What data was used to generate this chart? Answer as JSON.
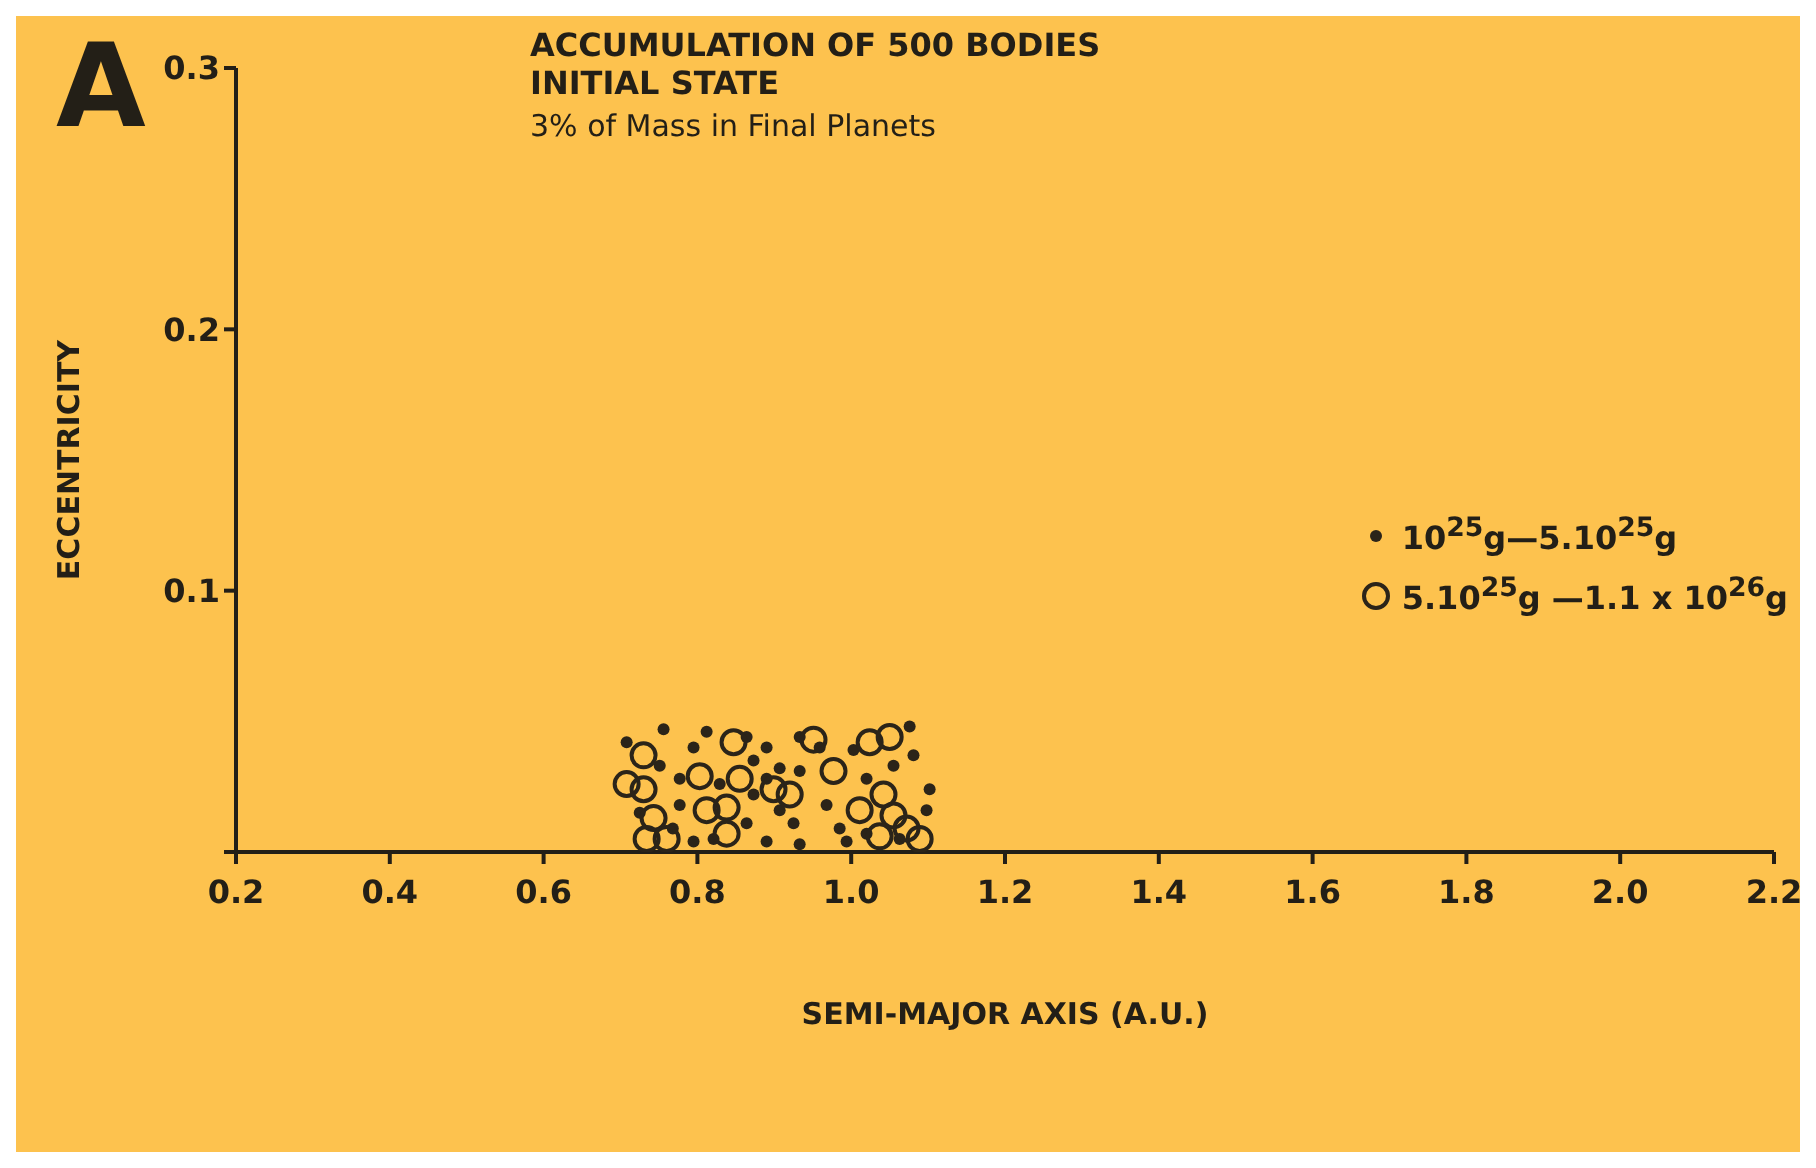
{
  "chart_data": {
    "type": "scatter",
    "title": "ACCUMULATION OF 500 BODIES",
    "subtitle": "INITIAL STATE",
    "annotations": [
      "A",
      "3% of Mass in Final Planets"
    ],
    "xlabel": "SEMI-MAJOR AXIS (A.U.)",
    "ylabel": "ECCENTRICITY",
    "xlim": [
      0.2,
      2.2
    ],
    "xticks": [
      {
        "value": 0.2,
        "label": "0.2"
      },
      {
        "value": 0.4,
        "label": "0.4"
      },
      {
        "value": 0.6,
        "label": "0.6"
      },
      {
        "value": 0.8,
        "label": "0.8"
      },
      {
        "value": 1.0,
        "label": "1.0"
      },
      {
        "value": 1.2,
        "label": "1.2"
      },
      {
        "value": 1.4,
        "label": "1.4"
      },
      {
        "value": 1.6,
        "label": "1.6"
      },
      {
        "value": 1.8,
        "label": "1.8"
      },
      {
        "value": 2.0,
        "label": "2.0"
      },
      {
        "value": 2.2,
        "label": "2.2"
      }
    ],
    "ylim": [
      0,
      0.3
    ],
    "yticks": [
      {
        "value": 0,
        "label": null
      },
      0.1,
      0.2,
      0.3
    ],
    "grid": false,
    "legend": "right",
    "marker": "circle",
    "series": [
      {
        "name": "10$^{25}$g—5.10$^{25}$g",
        "color": "#2b2419",
        "x": [
          0.708,
          0.756,
          0.795,
          0.812,
          0.873,
          0.89,
          0.933,
          0.959,
          1.003,
          1.076,
          1.081,
          1.102,
          1.098,
          0.933,
          0.907,
          0.873,
          0.864,
          0.925,
          0.933,
          0.985,
          0.994,
          0.968,
          0.777,
          0.768,
          0.725,
          0.795,
          0.821,
          0.89,
          1.02,
          1.063,
          0.907,
          0.829,
          0.777,
          0.751,
          1.02,
          1.055,
          0.89,
          0.864
        ],
        "values": [
          0.042,
          0.047,
          0.04,
          0.046,
          0.035,
          0.028,
          0.044,
          0.04,
          0.039,
          0.048,
          0.037,
          0.024,
          0.016,
          0.031,
          0.032,
          0.022,
          0.011,
          0.011,
          0.003,
          0.009,
          0.004,
          0.018,
          0.018,
          0.009,
          0.015,
          0.004,
          0.005,
          0.004,
          0.007,
          0.005,
          0.016,
          0.026,
          0.028,
          0.033,
          0.028,
          0.033,
          0.04,
          0.044
        ]
      },
      {
        "name": "5.10$^{25}$g —1.1 x 10$^{26}$g",
        "color": "#2b2419",
        "x": [
          0.73,
          0.708,
          0.73,
          0.803,
          0.847,
          0.855,
          0.899,
          0.951,
          0.977,
          1.024,
          1.05,
          1.042,
          1.055,
          0.812,
          0.838,
          0.743,
          0.734,
          0.76,
          0.838,
          0.92,
          1.011,
          1.037,
          1.089,
          1.072
        ],
        "values": [
          0.037,
          0.026,
          0.024,
          0.029,
          0.042,
          0.028,
          0.024,
          0.043,
          0.031,
          0.042,
          0.044,
          0.022,
          0.014,
          0.016,
          0.017,
          0.013,
          0.005,
          0.005,
          0.007,
          0.022,
          0.016,
          0.006,
          0.005,
          0.009
        ]
      }
    ]
  }
}
